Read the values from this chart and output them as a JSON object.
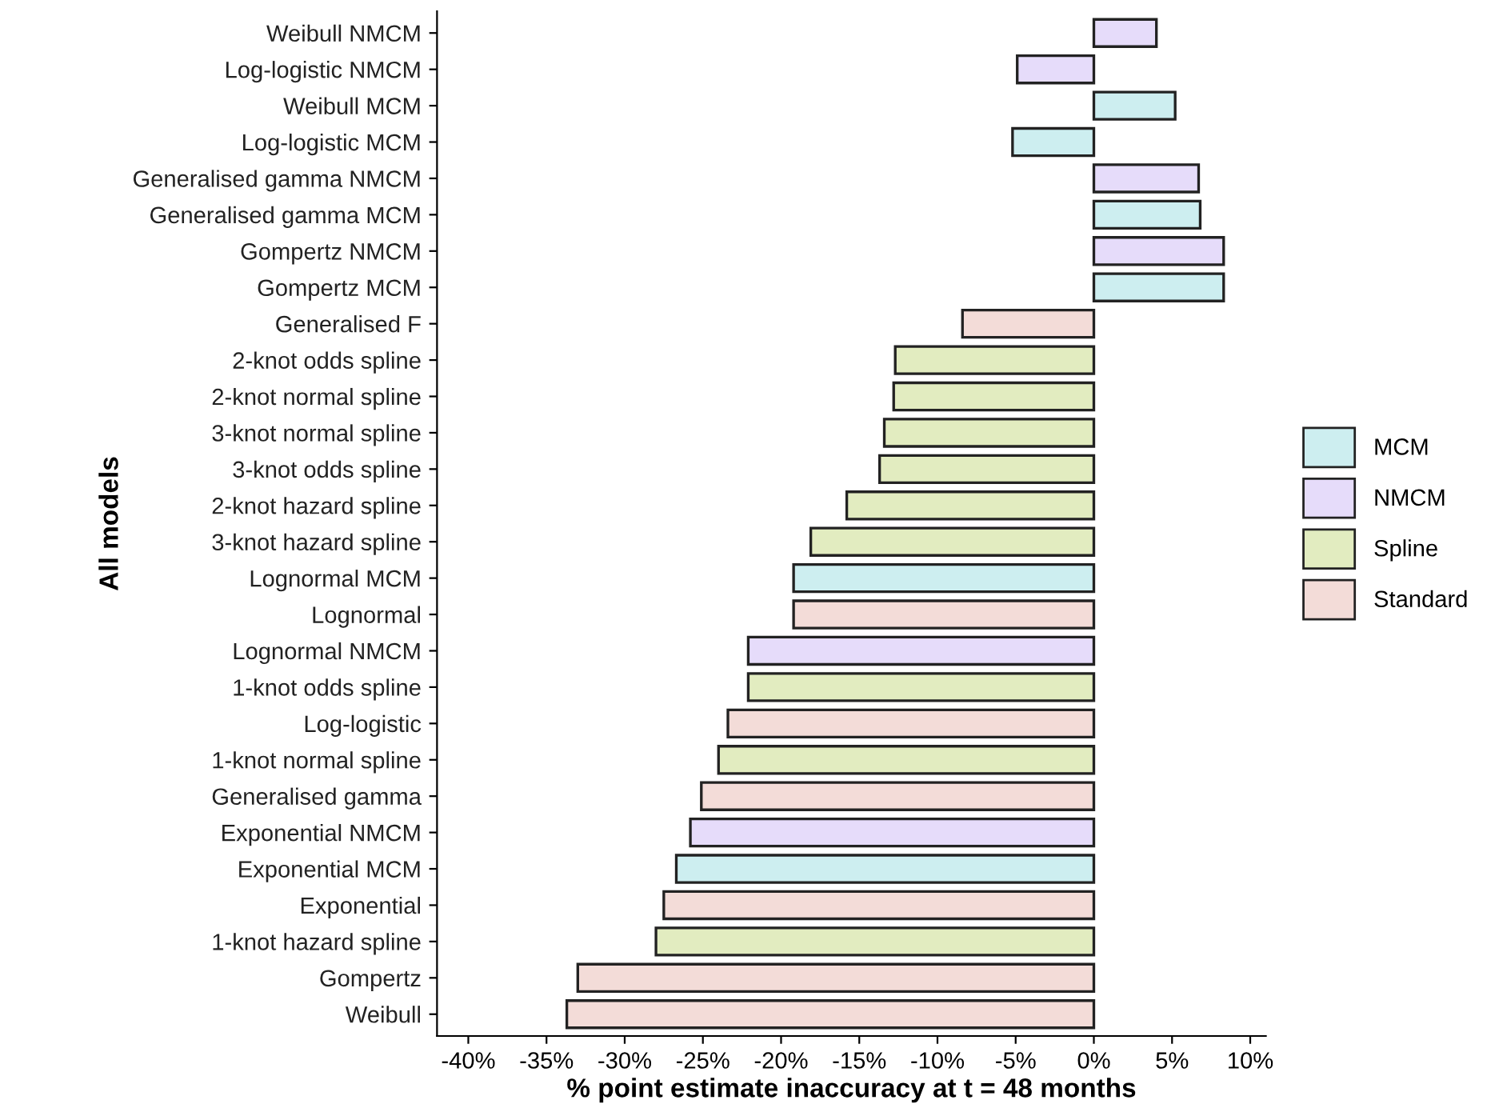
{
  "chart_data": {
    "type": "bar",
    "orientation": "horizontal",
    "xlabel": "% point estimate inaccuracy at t = 48 months",
    "ylabel": "All models",
    "categories": [
      "Weibull NMCM",
      "Log-logistic NMCM",
      "Weibull MCM",
      "Log-logistic MCM",
      "Generalised gamma NMCM",
      "Generalised gamma MCM",
      "Gompertz NMCM",
      "Gompertz MCM",
      "Generalised F",
      "2-knot odds spline",
      "2-knot normal spline",
      "3-knot normal spline",
      "3-knot odds spline",
      "2-knot hazard spline",
      "3-knot hazard spline",
      "Lognormal MCM",
      "Lognormal",
      "Lognormal NMCM",
      "1-knot odds spline",
      "Log-logistic",
      "1-knot normal spline",
      "Generalised gamma",
      "Exponential NMCM",
      "Exponential MCM",
      "Exponential",
      "1-knot hazard spline",
      "Gompertz",
      "Weibull"
    ],
    "series": [
      {
        "name": "MCM",
        "color": "#cdeef0",
        "values": [
          null,
          null,
          5.2,
          -5.2,
          null,
          6.8,
          null,
          8.3,
          null,
          null,
          null,
          null,
          null,
          null,
          null,
          -19.2,
          null,
          null,
          null,
          null,
          null,
          null,
          null,
          -26.7,
          null,
          null,
          null,
          null
        ]
      },
      {
        "name": "NMCM",
        "color": "#e6dcfa",
        "values": [
          4.0,
          -4.9,
          null,
          null,
          6.7,
          null,
          8.3,
          null,
          null,
          null,
          null,
          null,
          null,
          null,
          null,
          null,
          null,
          -22.1,
          null,
          null,
          null,
          null,
          -25.8,
          null,
          null,
          null,
          null,
          null
        ]
      },
      {
        "name": "Spline",
        "color": "#e2ecc0",
        "values": [
          null,
          null,
          null,
          null,
          null,
          null,
          null,
          null,
          null,
          -12.7,
          -12.8,
          -13.4,
          -13.7,
          -15.8,
          -18.1,
          null,
          null,
          null,
          -22.1,
          null,
          -24.0,
          null,
          null,
          null,
          null,
          -28.0,
          null,
          null
        ]
      },
      {
        "name": "Standard",
        "color": "#f3dcd8",
        "values": [
          null,
          null,
          null,
          null,
          null,
          null,
          null,
          null,
          -8.4,
          null,
          null,
          null,
          null,
          null,
          null,
          null,
          -19.2,
          null,
          null,
          -23.4,
          null,
          -25.1,
          null,
          null,
          -27.5,
          null,
          -33.0,
          -33.7
        ]
      }
    ],
    "xlim": [
      -42,
      11
    ],
    "xticks": [
      {
        "value": -40,
        "label": "-40%"
      },
      {
        "value": -35,
        "label": "-35%"
      },
      {
        "value": -30,
        "label": "-30%"
      },
      {
        "value": -25,
        "label": "-25%"
      },
      {
        "value": -20,
        "label": "-20%"
      },
      {
        "value": -15,
        "label": "-15%"
      },
      {
        "value": -10,
        "label": "-10%"
      },
      {
        "value": -5,
        "label": "-5%"
      },
      {
        "value": 0,
        "label": "0%"
      },
      {
        "value": 5,
        "label": "5%"
      },
      {
        "value": 10,
        "label": "10%"
      }
    ],
    "legend": "right",
    "grid": false
  }
}
